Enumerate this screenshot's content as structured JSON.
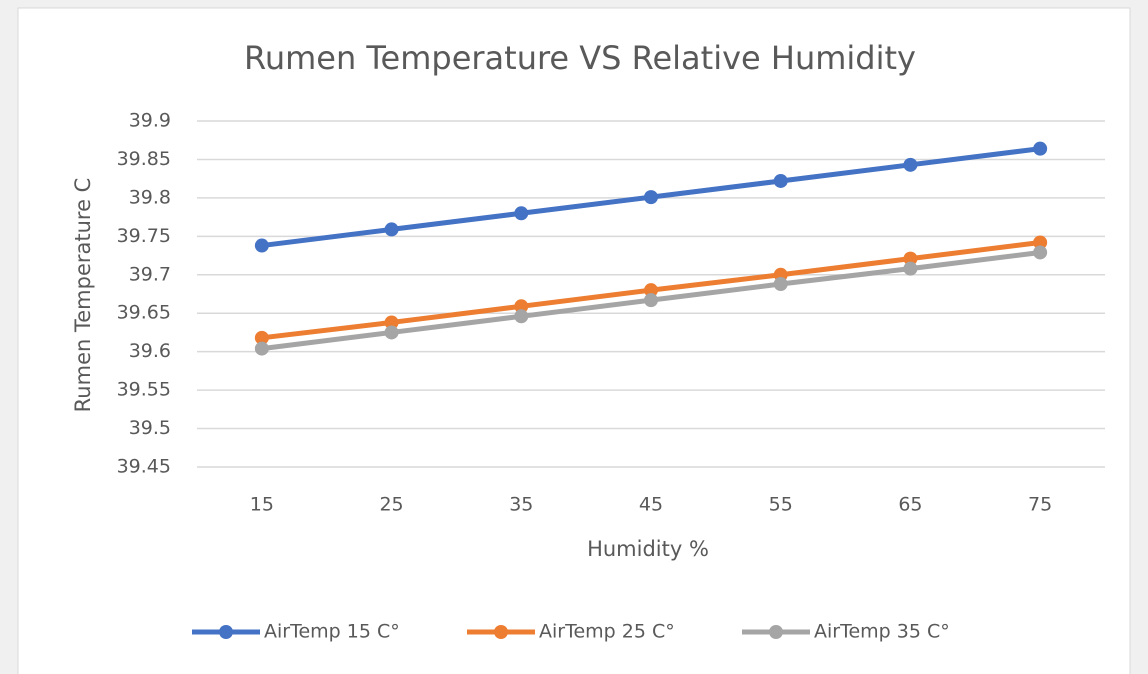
{
  "chart_data": {
    "type": "line",
    "title": "Rumen Temperature VS Relative Humidity",
    "x_label": "Humidity %",
    "y_label": "Rumen Temperature C",
    "categories": [
      "15",
      "25",
      "35",
      "45",
      "55",
      "65",
      "75"
    ],
    "series": [
      {
        "name": "AirTemp 15 C°",
        "color": "#4472c4",
        "values": [
          39.738,
          39.759,
          39.78,
          39.801,
          39.822,
          39.843,
          39.864
        ]
      },
      {
        "name": "AirTemp 25 C°",
        "color": "#ed7d31",
        "values": [
          39.618,
          39.638,
          39.659,
          39.68,
          39.7,
          39.721,
          39.742
        ]
      },
      {
        "name": "AirTemp 35 C°",
        "color": "#a5a5a5",
        "values": [
          39.604,
          39.625,
          39.646,
          39.667,
          39.688,
          39.708,
          39.729
        ]
      }
    ],
    "ylim": [
      39.45,
      39.9
    ],
    "yticks": [
      39.45,
      39.5,
      39.55,
      39.6,
      39.65,
      39.7,
      39.75,
      39.8,
      39.85,
      39.9
    ],
    "grid": true,
    "legend": "bottom"
  }
}
